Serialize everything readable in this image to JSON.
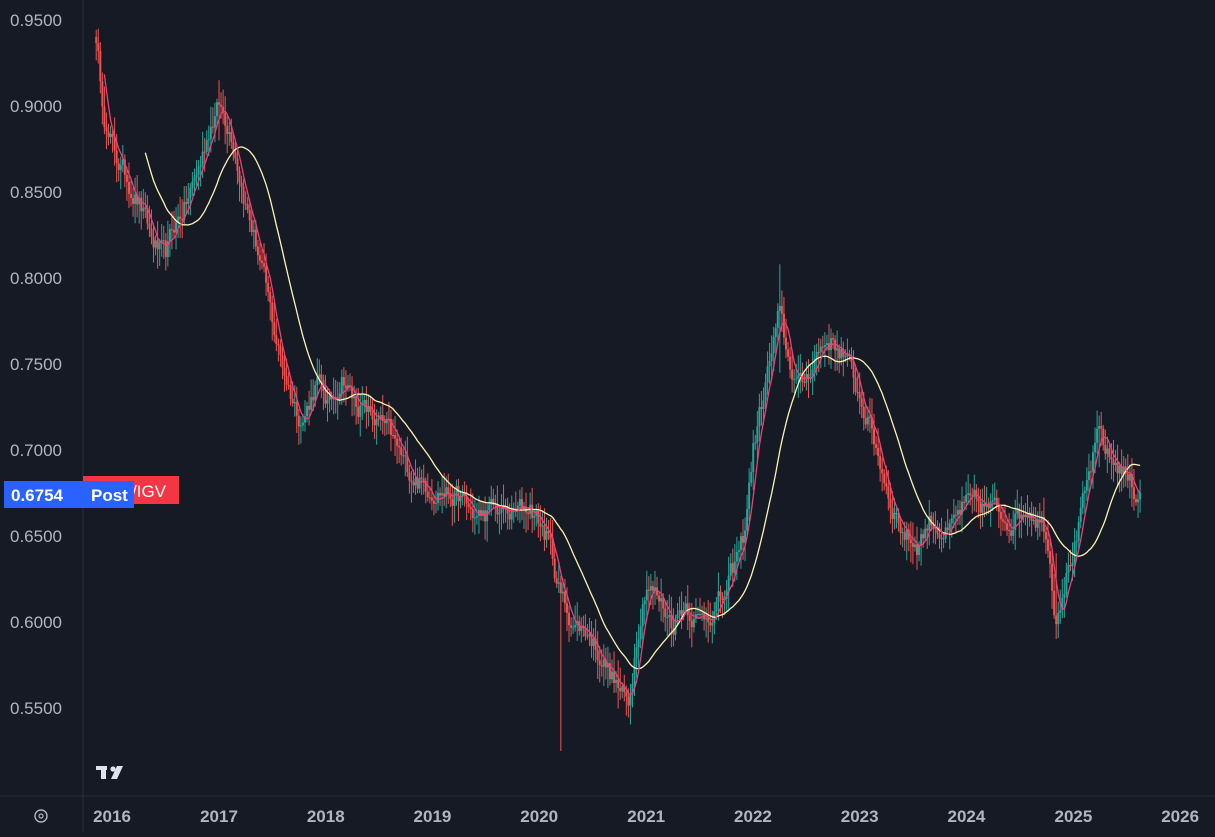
{
  "chart_data": {
    "type": "candlestick",
    "title": "",
    "xlabel": "",
    "ylabel": "",
    "ylim": [
      0.52,
      0.96
    ],
    "x_ticks": [
      "2016",
      "2017",
      "2018",
      "2019",
      "2020",
      "2021",
      "2022",
      "2023",
      "2024",
      "2025",
      "2026"
    ],
    "y_ticks": [
      "0.9500",
      "0.9000",
      "0.8500",
      "0.8000",
      "0.7500",
      "0.7000",
      "0.6500",
      "0.6000",
      "0.5500"
    ],
    "grid": false,
    "legend": "none",
    "price_label": {
      "value": "0.6754",
      "badge": "Post",
      "symbol_suffix": "/IGV"
    },
    "watermark": "TV",
    "colors": {
      "background": "#161a25",
      "up": "#26a69a",
      "down": "#ef5350",
      "ma_fast": "#ec407a",
      "ma_slow": "#fff3b0",
      "axis_text": "#b2b5be",
      "price_label_bg": "#2962ff",
      "symbol_label_bg": "#f23645"
    },
    "close_path": [
      [
        "2015-11-01",
        0.945
      ],
      [
        "2015-12-15",
        0.885
      ],
      [
        "2016-01-15",
        0.87
      ],
      [
        "2016-02-15",
        0.86
      ],
      [
        "2016-04-01",
        0.845
      ],
      [
        "2016-05-15",
        0.822
      ],
      [
        "2016-07-01",
        0.81
      ],
      [
        "2016-08-01",
        0.83
      ],
      [
        "2016-09-15",
        0.845
      ],
      [
        "2016-11-01",
        0.868
      ],
      [
        "2016-12-01",
        0.89
      ],
      [
        "2017-01-01",
        0.9
      ],
      [
        "2017-02-15",
        0.885
      ],
      [
        "2017-04-01",
        0.845
      ],
      [
        "2017-05-15",
        0.815
      ],
      [
        "2017-07-01",
        0.775
      ],
      [
        "2017-08-01",
        0.752
      ],
      [
        "2017-09-15",
        0.728
      ],
      [
        "2017-10-15",
        0.718
      ],
      [
        "2017-12-01",
        0.74
      ],
      [
        "2018-01-15",
        0.725
      ],
      [
        "2018-03-01",
        0.745
      ],
      [
        "2018-04-01",
        0.73
      ],
      [
        "2018-06-01",
        0.72
      ],
      [
        "2018-08-01",
        0.71
      ],
      [
        "2018-10-01",
        0.69
      ],
      [
        "2018-12-01",
        0.68
      ],
      [
        "2019-02-01",
        0.677
      ],
      [
        "2019-04-01",
        0.672
      ],
      [
        "2019-06-01",
        0.66
      ],
      [
        "2019-08-01",
        0.665
      ],
      [
        "2019-10-01",
        0.662
      ],
      [
        "2019-12-01",
        0.668
      ],
      [
        "2020-02-01",
        0.648
      ],
      [
        "2020-03-15",
        0.615
      ],
      [
        "2020-05-01",
        0.598
      ],
      [
        "2020-06-15",
        0.595
      ],
      [
        "2020-08-01",
        0.58
      ],
      [
        "2020-09-15",
        0.565
      ],
      [
        "2020-11-01",
        0.55
      ],
      [
        "2020-12-01",
        0.595
      ],
      [
        "2021-01-01",
        0.625
      ],
      [
        "2021-02-15",
        0.612
      ],
      [
        "2021-04-01",
        0.6
      ],
      [
        "2021-05-15",
        0.612
      ],
      [
        "2021-07-01",
        0.6
      ],
      [
        "2021-08-15",
        0.608
      ],
      [
        "2021-10-01",
        0.615
      ],
      [
        "2021-12-01",
        0.65
      ],
      [
        "2022-01-01",
        0.7
      ],
      [
        "2022-02-15",
        0.74
      ],
      [
        "2022-04-01",
        0.778
      ],
      [
        "2022-05-01",
        0.752
      ],
      [
        "2022-06-15",
        0.735
      ],
      [
        "2022-08-01",
        0.755
      ],
      [
        "2022-09-15",
        0.765
      ],
      [
        "2022-11-01",
        0.758
      ],
      [
        "2022-12-01",
        0.745
      ],
      [
        "2023-01-15",
        0.725
      ],
      [
        "2023-03-01",
        0.7
      ],
      [
        "2023-04-15",
        0.672
      ],
      [
        "2023-06-01",
        0.652
      ],
      [
        "2023-07-15",
        0.645
      ],
      [
        "2023-09-01",
        0.66
      ],
      [
        "2023-11-01",
        0.65
      ],
      [
        "2023-12-15",
        0.665
      ],
      [
        "2024-02-01",
        0.668
      ],
      [
        "2024-04-01",
        0.665
      ],
      [
        "2024-06-01",
        0.66
      ],
      [
        "2024-08-01",
        0.668
      ],
      [
        "2024-10-01",
        0.655
      ],
      [
        "2024-11-01",
        0.605
      ],
      [
        "2024-12-01",
        0.625
      ],
      [
        "2025-01-15",
        0.65
      ],
      [
        "2025-03-01",
        0.688
      ],
      [
        "2025-04-01",
        0.71
      ],
      [
        "2025-05-01",
        0.695
      ],
      [
        "2025-06-15",
        0.69
      ],
      [
        "2025-08-01",
        0.675
      ],
      [
        "2025-08-20",
        0.6754
      ]
    ],
    "spikes": [
      [
        "2020-03-15",
        0.525,
        0.625
      ],
      [
        "2022-04-01",
        0.745,
        0.808
      ],
      [
        "2025-04-01",
        0.69,
        0.72
      ],
      [
        "2017-01-01",
        0.88,
        0.915
      ],
      [
        "2024-11-01",
        0.592,
        0.64
      ]
    ]
  }
}
